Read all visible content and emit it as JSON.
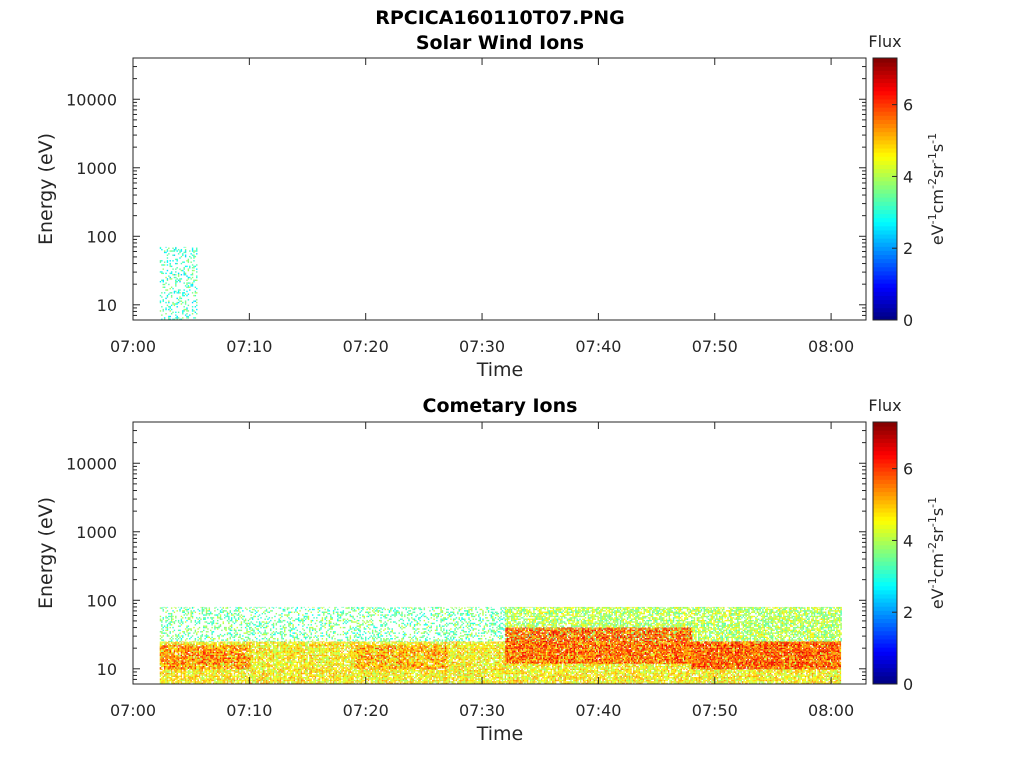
{
  "figure": {
    "title": "RPCICA160110T07.PNG"
  },
  "chart_data": [
    {
      "type": "heatmap",
      "title": "Solar Wind Ions",
      "xlabel": "Time",
      "ylabel": "Energy (eV)",
      "x_ticks": [
        "07:00",
        "07:10",
        "07:20",
        "07:30",
        "07:40",
        "07:50",
        "08:00"
      ],
      "xlim_minutes": [
        0,
        63
      ],
      "y_scale": "log",
      "y_ticks": [
        10,
        100,
        1000,
        10000
      ],
      "y_tick_labels": [
        "10",
        "100",
        "1000",
        "10000"
      ],
      "ylim": [
        6,
        40000
      ],
      "colorbar": {
        "title": "Flux",
        "label": "eV-1cm-2sr-1s-1",
        "range": [
          0,
          7.3
        ],
        "ticks": [
          "0",
          "2",
          "4",
          "6"
        ],
        "colormap": "jet"
      },
      "regions": [
        {
          "t_start": 2.3,
          "t_end": 5.5,
          "e_min": 6,
          "e_max": 70,
          "level": 3.2,
          "density": 0.25
        }
      ]
    },
    {
      "type": "heatmap",
      "title": "Cometary Ions",
      "xlabel": "Time",
      "ylabel": "Energy (eV)",
      "x_ticks": [
        "07:00",
        "07:10",
        "07:20",
        "07:30",
        "07:40",
        "07:50",
        "08:00"
      ],
      "xlim_minutes": [
        0,
        63
      ],
      "y_scale": "log",
      "y_ticks": [
        10,
        100,
        1000,
        10000
      ],
      "y_tick_labels": [
        "10",
        "100",
        "1000",
        "10000"
      ],
      "ylim": [
        6,
        40000
      ],
      "colorbar": {
        "title": "Flux",
        "label": "eV-1cm-2sr-1s-1",
        "range": [
          0,
          7.3
        ],
        "ticks": [
          "0",
          "2",
          "4",
          "6"
        ],
        "colormap": "jet"
      },
      "regions": [
        {
          "t_start": 2.3,
          "t_end": 60.8,
          "e_min": 6,
          "e_max": 25,
          "level": 4.6,
          "density": 0.85
        },
        {
          "t_start": 2.3,
          "t_end": 32.0,
          "e_min": 25,
          "e_max": 80,
          "level": 3.5,
          "density": 0.3
        },
        {
          "t_start": 32.0,
          "t_end": 60.8,
          "e_min": 25,
          "e_max": 80,
          "level": 4.0,
          "density": 0.7
        },
        {
          "t_start": 2.3,
          "t_end": 10.0,
          "e_min": 10,
          "e_max": 22,
          "level": 5.6,
          "density": 0.6
        },
        {
          "t_start": 19.0,
          "t_end": 27.0,
          "e_min": 10,
          "e_max": 22,
          "level": 5.4,
          "density": 0.5
        },
        {
          "t_start": 32.0,
          "t_end": 48.0,
          "e_min": 12,
          "e_max": 40,
          "level": 5.8,
          "density": 0.75
        },
        {
          "t_start": 48.0,
          "t_end": 60.8,
          "e_min": 10,
          "e_max": 25,
          "level": 5.9,
          "density": 0.8
        }
      ]
    }
  ]
}
